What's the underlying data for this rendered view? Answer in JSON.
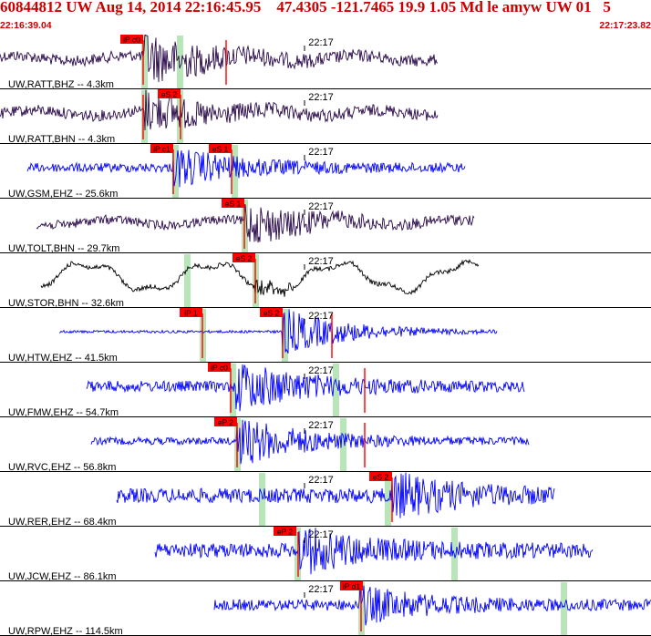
{
  "header": {
    "title": "60844812 UW Aug 14, 2014 22:16:45.95    47.4305 -121.7465 19.9 1.05 Md le amyw UW 01   5",
    "time_start": "22:16:39.04",
    "time_end": "22:17:23.82"
  },
  "colors": {
    "header": "#cc0000",
    "pick_box": "#ff0000",
    "phase_window": "#b8e6b8",
    "trace_bh": "#2a0a4a",
    "trace_ehz": "#0000ff",
    "trace_long": "#000000"
  },
  "tick_label": "22:17",
  "traces": [
    {
      "label": "UW,RATT,BHZ -- 4.3km",
      "color": "#2a0a4a",
      "start": 0,
      "end": 480,
      "onset": 158,
      "amp": 6,
      "quake": 26,
      "picks": [
        {
          "label": "iP c0",
          "x": 157
        }
      ],
      "windows": [
        158,
        197
      ],
      "redlines": [
        157,
        248
      ]
    },
    {
      "label": "UW,RATT,BHN -- 4.3km",
      "color": "#2a0a4a",
      "start": 0,
      "end": 480,
      "onset": 158,
      "amp": 6,
      "quake": 20,
      "picks": [
        {
          "label": "eS 2",
          "x": 198
        }
      ],
      "windows": [
        158,
        197
      ],
      "redlines": [
        157,
        198
      ]
    },
    {
      "label": "UW,GSM,EHZ -- 25.6km",
      "color": "#0000ff",
      "start": 30,
      "end": 510,
      "onset": 190,
      "amp": 5,
      "quake": 20,
      "picks": [
        {
          "label": "iP c1",
          "x": 190
        },
        {
          "label": "eS 1",
          "x": 254
        }
      ],
      "windows": [
        192,
        257
      ],
      "redlines": [
        190,
        254
      ]
    },
    {
      "label": "UW,TOLT,BHN -- 29.7km",
      "color": "#2a0a4a",
      "start": 40,
      "end": 520,
      "onset": 268,
      "amp": 5,
      "quake": 22,
      "picks": [
        {
          "label": "eS 1",
          "x": 268
        }
      ],
      "windows": [
        268
      ],
      "redlines": [
        268
      ]
    },
    {
      "label": "UW,STOR,BHN -- 32.6km",
      "color": "#000000",
      "start": 45,
      "end": 525,
      "onset": 280,
      "amp": 18,
      "quake": 8,
      "picks": [
        {
          "label": "eS 2",
          "x": 280
        }
      ],
      "windows": [
        205,
        280
      ],
      "redlines": [
        280
      ]
    },
    {
      "label": "UW,HTW,EHZ -- 41.5km",
      "color": "#0000ff",
      "start": 65,
      "end": 545,
      "onset": 310,
      "amp": 1.5,
      "quake": 26,
      "picks": [
        {
          "label": "iP 1",
          "x": 222
        },
        {
          "label": "eS 2",
          "x": 310
        }
      ],
      "windows": [
        222,
        312
      ],
      "redlines": [
        222,
        310,
        364
      ]
    },
    {
      "label": "UW,FMW,EHZ -- 54.7km",
      "color": "#0000ff",
      "start": 95,
      "end": 575,
      "onset": 258,
      "amp": 6,
      "quake": 26,
      "picks": [
        {
          "label": "iP c0",
          "x": 253
        }
      ],
      "windows": [
        255,
        368
      ],
      "redlines": [
        253,
        400
      ]
    },
    {
      "label": "UW,RVC,EHZ -- 56.8km",
      "color": "#0000ff",
      "start": 100,
      "end": 580,
      "onset": 260,
      "amp": 4,
      "quake": 26,
      "picks": [
        {
          "label": "eP 2",
          "x": 260
        }
      ],
      "windows": [
        260,
        376
      ],
      "redlines": [
        260,
        400
      ]
    },
    {
      "label": "UW,RER,EHZ -- 68.4km",
      "color": "#0000ff",
      "start": 128,
      "end": 608,
      "onset": 430,
      "amp": 8,
      "quake": 22,
      "picks": [
        {
          "label": "eS 2",
          "x": 430
        }
      ],
      "windows": [
        287,
        425
      ],
      "redlines": [
        430
      ]
    },
    {
      "label": "UW,JCW,EHZ -- 86.1km",
      "color": "#0000ff",
      "start": 170,
      "end": 650,
      "onset": 328,
      "amp": 8,
      "quake": 22,
      "picks": [
        {
          "label": "eP 2",
          "x": 325
        }
      ],
      "windows": [
        326,
        498
      ],
      "redlines": [
        327
      ]
    },
    {
      "label": "UW,RPW,EHZ -- 114.5km",
      "color": "#0000ff",
      "start": 235,
      "end": 714,
      "onset": 395,
      "amp": 6,
      "quake": 18,
      "picks": [
        {
          "label": "iP d1",
          "x": 398
        }
      ],
      "windows": [
        396,
        618
      ],
      "redlines": [
        396
      ]
    }
  ]
}
